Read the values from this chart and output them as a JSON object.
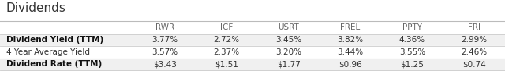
{
  "title": "Dividends",
  "columns": [
    "",
    "RWR",
    "ICF",
    "USRT",
    "FREL",
    "PPTY",
    "FRI"
  ],
  "rows": [
    {
      "label": "Dividend Yield (TTM)",
      "values": [
        "3.77%",
        "2.72%",
        "3.45%",
        "3.82%",
        "4.36%",
        "2.99%"
      ],
      "bold": true
    },
    {
      "label": "4 Year Average Yield",
      "values": [
        "3.57%",
        "2.37%",
        "3.20%",
        "3.44%",
        "3.55%",
        "2.46%"
      ],
      "bold": false
    },
    {
      "label": "Dividend Rate (TTM)",
      "values": [
        "$3.43",
        "$1.51",
        "$1.77",
        "$0.96",
        "$1.25",
        "$0.74"
      ],
      "bold": true
    }
  ],
  "header_color": "#ffffff",
  "row_colors": [
    "#f0f0f0",
    "#ffffff",
    "#f0f0f0"
  ],
  "title_fontsize": 11,
  "table_fontsize": 7.5,
  "header_fontsize": 7.5,
  "title_color": "#333333",
  "header_text_color": "#666666",
  "row_label_bold_color": "#111111",
  "row_label_normal_color": "#333333",
  "value_color": "#333333",
  "line_color": "#cccccc",
  "background_color": "#ffffff"
}
